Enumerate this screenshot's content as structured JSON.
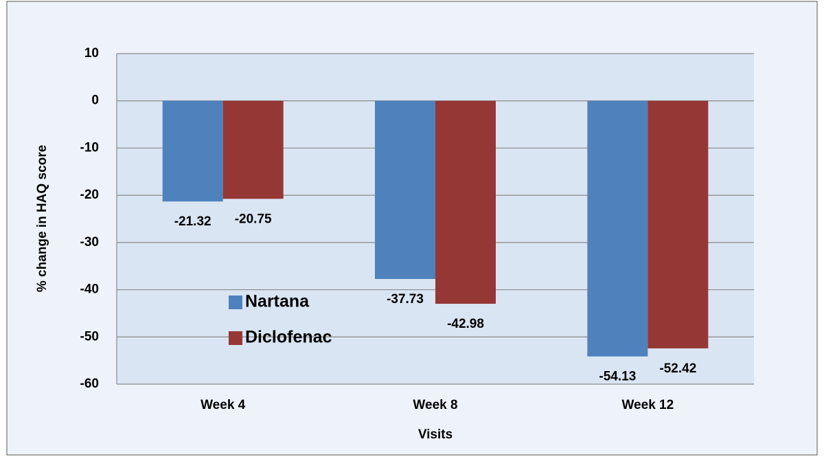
{
  "chart_data": {
    "type": "bar",
    "categories": [
      "Week 4",
      "Week 8",
      "Week 12"
    ],
    "series": [
      {
        "name": "Nartana",
        "color": "#4f81bd",
        "values": [
          -21.32,
          -37.73,
          -54.13
        ]
      },
      {
        "name": "Diclofenac",
        "color": "#953735",
        "values": [
          -20.75,
          -42.98,
          -52.42
        ]
      }
    ],
    "ylim": [
      -60,
      10
    ],
    "yticks": [
      -60,
      -50,
      -40,
      -30,
      -20,
      -10,
      0,
      10
    ],
    "y_label": "% change in HAQ score",
    "x_label": "Visits",
    "grid": true
  }
}
